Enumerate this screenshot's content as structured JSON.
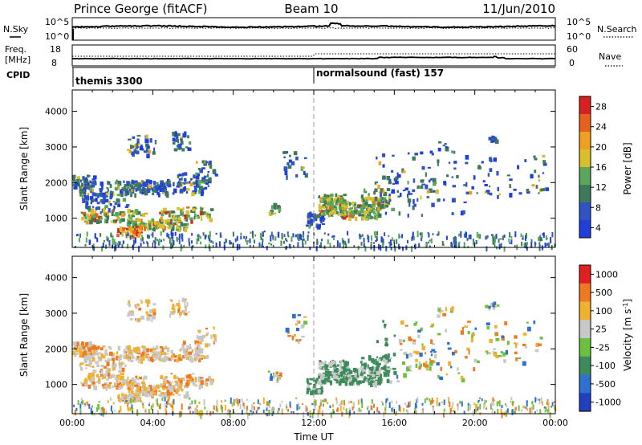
{
  "header": {
    "station": "Prince George (fitACF)",
    "beam": "Beam 10",
    "date": "11/Jun/2010"
  },
  "status_panels": {
    "nsky_label": "N.Sky",
    "nsearch_label": "N.Search",
    "freq_label_1": "Freq.",
    "freq_label_2": "[MHz]",
    "nave_label": "Nave",
    "cpid_label": "CPID",
    "noise_left_ticks": [
      "10^5",
      "10^0"
    ],
    "noise_right_ticks": [
      "10^5",
      "10^0"
    ],
    "freq_left_ticks": [
      "18",
      "8"
    ],
    "nave_right_ticks": [
      "60",
      "0"
    ],
    "cpid_programs": [
      {
        "name": "themis 3300",
        "start_hour": 0
      },
      {
        "name": "normalsound (fast) 157",
        "start_hour": 12
      }
    ]
  },
  "x_axis": {
    "label": "Time UT",
    "ticks": [
      "00:00",
      "04:00",
      "08:00",
      "12:00",
      "16:00",
      "20:00",
      "00:00"
    ],
    "range_hours": [
      0,
      24
    ]
  },
  "chart_data": [
    {
      "type": "heatmap",
      "quantity": "Power",
      "colorbar_label": "Power [dB]",
      "colorbar_ticks": [
        "28",
        "24",
        "20",
        "16",
        "12",
        "8",
        "4"
      ],
      "ylabel": "Slant Range [km]",
      "yticks": [
        "4000",
        "3000",
        "2000",
        "1000"
      ],
      "ylim": [
        180,
        4600
      ],
      "colors": [
        "#1f3fd8",
        "#2f52c4",
        "#3e7a5a",
        "#5aa65a",
        "#d8c02a",
        "#f0a020",
        "#e86020",
        "#d82020"
      ],
      "grid": false
    },
    {
      "type": "heatmap",
      "quantity": "Velocity",
      "colorbar_label": "Velocity [m s^-1]",
      "colorbar_ticks": [
        "1000",
        "500",
        "100",
        "25",
        "-25",
        "-100",
        "-500",
        "-1000"
      ],
      "ylabel": "Slant Range [km]",
      "yticks": [
        "4000",
        "3000",
        "2000",
        "1000"
      ],
      "ylim": [
        180,
        4600
      ],
      "colors": [
        "#2040c0",
        "#3070d0",
        "#3e8a5a",
        "#6cc040",
        "#c8c8c8",
        "#f0b030",
        "#f07820",
        "#e02020"
      ],
      "grid": false
    }
  ]
}
